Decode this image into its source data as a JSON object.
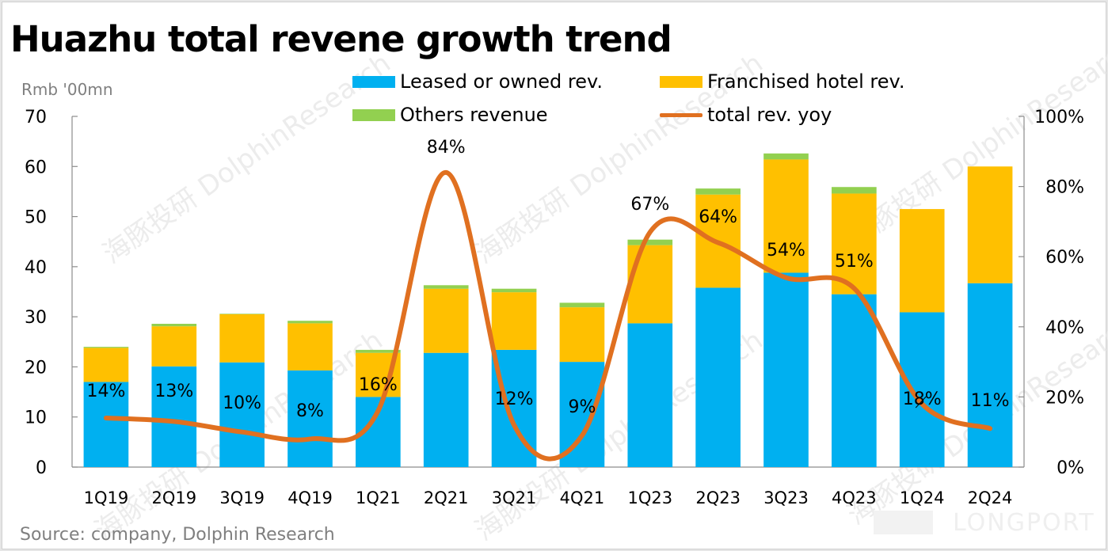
{
  "title": "Huazhu total revene growth trend",
  "unit_label": "Rmb '00mn",
  "source": "Source: company, Dolphin Research",
  "watermarks": {
    "brand": "DolphinResearch",
    "brand_cn": "海豚投研",
    "footer_brand": "LONGPORT"
  },
  "legend": [
    {
      "label": "Leased or owned rev.",
      "color": "#00b0f0",
      "kind": "bar"
    },
    {
      "label": "Franchised hotel rev.",
      "color": "#ffc000",
      "kind": "bar"
    },
    {
      "label": "Others revenue",
      "color": "#92d050",
      "kind": "bar"
    },
    {
      "label": "total rev. yoy",
      "color": "#e07020",
      "kind": "line"
    }
  ],
  "chart_data": {
    "type": "bar",
    "stacked": true,
    "title": "Huazhu total revene growth trend",
    "ylabel": "Rmb '00mn",
    "xlabel": "",
    "categories": [
      "1Q19",
      "2Q19",
      "3Q19",
      "4Q19",
      "1Q21",
      "2Q21",
      "3Q21",
      "4Q21",
      "1Q23",
      "2Q23",
      "3Q23",
      "4Q23",
      "1Q24",
      "2Q24"
    ],
    "ylim": [
      0,
      70
    ],
    "yticks": [
      0,
      10,
      20,
      30,
      40,
      50,
      60,
      70
    ],
    "y2lim": [
      0,
      100
    ],
    "y2ticks": [
      "0%",
      "20%",
      "40%",
      "60%",
      "80%",
      "100%"
    ],
    "y2tick_values": [
      0,
      20,
      40,
      60,
      80,
      100
    ],
    "grid": false,
    "legend_position": "top",
    "series": [
      {
        "name": "Leased or owned rev.",
        "type": "bar",
        "axis": "left",
        "color": "#00b0f0",
        "values": [
          17.0,
          20.1,
          20.9,
          19.3,
          14.0,
          22.8,
          23.4,
          21.0,
          28.7,
          35.8,
          38.8,
          34.5,
          30.9,
          36.7
        ]
      },
      {
        "name": "Franchised hotel rev.",
        "type": "bar",
        "axis": "left",
        "color": "#ffc000",
        "values": [
          6.8,
          8.0,
          9.6,
          9.4,
          8.8,
          12.8,
          11.5,
          10.9,
          15.6,
          18.6,
          22.6,
          20.1,
          20.6,
          23.3
        ]
      },
      {
        "name": "Others revenue",
        "type": "bar",
        "axis": "left",
        "color": "#92d050",
        "values": [
          0.2,
          0.5,
          0.1,
          0.5,
          0.6,
          0.7,
          0.7,
          0.9,
          1.1,
          1.2,
          1.2,
          1.3,
          0.0,
          0.0
        ]
      },
      {
        "name": "total rev. yoy",
        "type": "line",
        "axis": "right",
        "color": "#e07020",
        "unit": "%",
        "values": [
          14,
          13,
          10,
          8,
          16,
          84,
          12,
          9,
          67,
          64,
          54,
          51,
          18,
          11
        ],
        "labels": [
          "14%",
          "13%",
          "10%",
          "8%",
          "16%",
          "84%",
          "12%",
          "9%",
          "67%",
          "64%",
          "54%",
          "51%",
          "18%",
          "11%"
        ]
      }
    ]
  }
}
